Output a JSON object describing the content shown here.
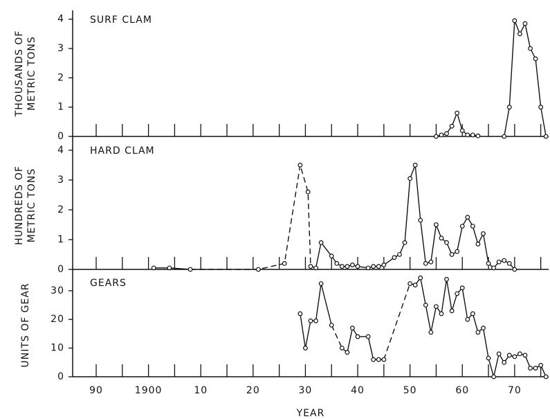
{
  "chart_data": [
    {
      "type": "line",
      "title": "SURF CLAM",
      "ylabel": [
        "THOUSANDS OF",
        "METRIC TONS"
      ],
      "xlim": [
        1885.5,
        1976.5
      ],
      "xticks": [
        1890,
        1895,
        1900,
        1905,
        1910,
        1915,
        1920,
        1925,
        1930,
        1935,
        1940,
        1945,
        1950,
        1955,
        1960,
        1965,
        1970,
        1975
      ],
      "ylim": [
        0,
        4.3
      ],
      "yticks": [
        0,
        1,
        2,
        3,
        4
      ],
      "x": [
        1955,
        1956,
        1957,
        1958,
        1959,
        1960,
        1961,
        1962,
        1963,
        1965,
        1968,
        1969,
        1970,
        1971,
        1972,
        1973,
        1974,
        1975,
        1976
      ],
      "values": [
        0,
        0.05,
        0.1,
        0.35,
        0.8,
        0.2,
        0.05,
        0.05,
        0.02,
        null,
        0,
        1.0,
        3.95,
        3.5,
        3.85,
        3.0,
        2.65,
        1.0,
        0
      ],
      "dashed": [
        false,
        false,
        false,
        false,
        false,
        false,
        false,
        false,
        false,
        false,
        false,
        false,
        false,
        false,
        false,
        false,
        false,
        false
      ]
    },
    {
      "type": "line",
      "title": "HARD CLAM",
      "ylabel": [
        "HUNDREDS OF",
        "METRIC TONS"
      ],
      "xlim": [
        1885.5,
        1976.5
      ],
      "xticks": [
        1890,
        1895,
        1900,
        1905,
        1910,
        1915,
        1920,
        1925,
        1930,
        1935,
        1940,
        1945,
        1950,
        1955,
        1960,
        1965,
        1970,
        1975
      ],
      "ylim": [
        0,
        4.3
      ],
      "yticks": [
        0,
        1,
        2,
        3,
        4
      ],
      "x": [
        1901,
        1904,
        1908,
        1921,
        1926,
        1929,
        1930.5,
        1931,
        1932,
        1933,
        1935,
        1936,
        1937,
        1938,
        1939,
        1940,
        1942,
        1943,
        1944,
        1945,
        1947,
        1948,
        1949,
        1950,
        1951,
        1952,
        1953,
        1954,
        1955,
        1956,
        1957,
        1958,
        1959,
        1960,
        1961,
        1962,
        1963,
        1964,
        1965,
        1966,
        1967,
        1968,
        1969,
        1970
      ],
      "values": [
        0.05,
        0.05,
        0,
        0,
        0.2,
        3.5,
        2.6,
        0.1,
        0.05,
        0.9,
        0.45,
        0.2,
        0.1,
        0.1,
        0.15,
        0.1,
        0.05,
        0.1,
        0.1,
        0.15,
        0.4,
        0.5,
        0.9,
        3.05,
        3.5,
        1.65,
        0.2,
        0.25,
        1.5,
        1.05,
        0.9,
        0.5,
        0.6,
        1.45,
        1.75,
        1.45,
        0.85,
        1.2,
        0.2,
        0.05,
        0.25,
        0.3,
        0.2,
        0
      ],
      "dashed": [
        false,
        false,
        true,
        true,
        true,
        true,
        true,
        true,
        false,
        false,
        false,
        false,
        false,
        false,
        false,
        false,
        false,
        false,
        false,
        false,
        false,
        false,
        false,
        false,
        false,
        false,
        false,
        false,
        false,
        false,
        false,
        false,
        false,
        false,
        false,
        false,
        false,
        false,
        false,
        false,
        false,
        false,
        false
      ]
    },
    {
      "type": "line",
      "title": "GEARS",
      "ylabel": [
        "UNITS OF GEAR"
      ],
      "xlabel": "YEAR",
      "xlim": [
        1885.5,
        1976.5
      ],
      "xticks": [
        {
          "value": 1890,
          "label": "90"
        },
        1900,
        {
          "value": 1910,
          "label": "10"
        },
        {
          "value": 1920,
          "label": "20"
        },
        {
          "value": 1930,
          "label": "30"
        },
        {
          "value": 1940,
          "label": "40"
        },
        {
          "value": 1950,
          "label": "50"
        },
        {
          "value": 1960,
          "label": "60"
        },
        {
          "value": 1970,
          "label": "70"
        }
      ],
      "xminor": [
        1895,
        1905,
        1915,
        1925,
        1935,
        1945,
        1955,
        1965,
        1975
      ],
      "ylim": [
        0,
        36
      ],
      "yticks": [
        0,
        10,
        20,
        30
      ],
      "x": [
        1929,
        1930,
        1931,
        1932,
        1933,
        1935,
        1937,
        1938,
        1939,
        1940,
        1942,
        1943,
        1944,
        1945,
        1950,
        1951,
        1952,
        1953,
        1954,
        1955,
        1956,
        1957,
        1958,
        1959,
        1960,
        1961,
        1962,
        1963,
        1964,
        1965,
        1966,
        1967,
        1968,
        1969,
        1970,
        1971,
        1972,
        1973,
        1974,
        1975,
        1976
      ],
      "values": [
        22,
        10,
        19.5,
        19.5,
        32.5,
        18,
        10,
        8.5,
        17,
        14,
        14,
        6,
        6,
        6,
        32.5,
        32,
        34.5,
        25,
        15.5,
        24.5,
        22,
        34,
        23,
        29,
        31,
        20,
        22,
        15.5,
        17,
        6.5,
        0,
        8,
        5,
        7.5,
        7,
        8,
        7.5,
        3,
        3,
        4,
        0
      ],
      "dashed": [
        false,
        false,
        false,
        false,
        false,
        true,
        false,
        false,
        false,
        false,
        false,
        false,
        false,
        true,
        false,
        false,
        false,
        false,
        false,
        false,
        false,
        false,
        false,
        false,
        false,
        false,
        false,
        false,
        false,
        false,
        false,
        false,
        false,
        false,
        false,
        false,
        false,
        false,
        false,
        false
      ]
    }
  ]
}
